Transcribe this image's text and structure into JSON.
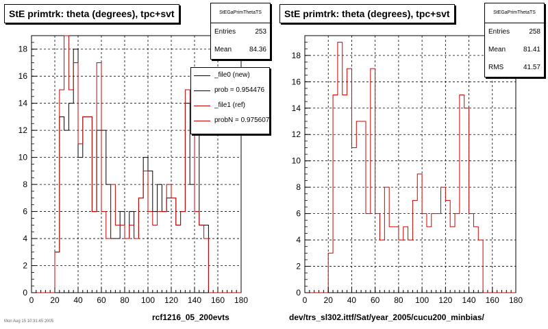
{
  "chart_data": [
    {
      "type": "histogram",
      "title": "StE primtrk: theta (degrees), tpc+svt",
      "xlabel": "rcf1216_05_200evts",
      "xlim": [
        0,
        180
      ],
      "ylim": [
        0,
        19
      ],
      "xticks": [
        0,
        20,
        40,
        60,
        80,
        100,
        120,
        140,
        160,
        180
      ],
      "yticks": [
        0,
        2,
        4,
        6,
        8,
        10,
        12,
        14,
        16,
        18
      ],
      "bin_width": 4,
      "grid": true,
      "stats": {
        "name": "StEGaPrimThetaTS",
        "entries_label": "Entries",
        "entries": "253",
        "mean_label": "Mean",
        "mean": "84.36"
      },
      "legend": {
        "placement": "top-right",
        "entries": [
          {
            "label": "_file0 (new)",
            "color": "#000000"
          },
          {
            "label": "prob = 0.954476",
            "color": "#000000"
          },
          {
            "label": "_file1 (ref)",
            "color": "#cc0000"
          },
          {
            "label": "probN = 0.975607",
            "color": "#cc0000"
          }
        ]
      },
      "series": [
        {
          "name": "_file0 (new)",
          "color": "#000000",
          "x": [
            20,
            24,
            28,
            32,
            36,
            40,
            44,
            48,
            52,
            56,
            60,
            64,
            68,
            72,
            76,
            80,
            84,
            88,
            92,
            96,
            100,
            104,
            108,
            112,
            116,
            120,
            124,
            128,
            132,
            136,
            140,
            144,
            148,
            152,
            156
          ],
          "values": [
            3,
            13,
            12,
            14,
            18,
            10,
            13,
            13,
            6,
            12,
            12,
            8,
            4,
            4,
            6,
            4,
            6,
            4,
            7,
            10,
            9,
            6,
            8,
            6,
            7,
            7,
            5,
            6,
            14,
            8,
            12,
            5,
            5,
            0,
            0
          ]
        },
        {
          "name": "_file1 (ref)",
          "color": "#cc0000",
          "x": [
            20,
            24,
            28,
            32,
            36,
            40,
            44,
            48,
            52,
            56,
            60,
            64,
            68,
            72,
            76,
            80,
            84,
            88,
            92,
            96,
            100,
            104,
            108,
            112,
            116,
            120,
            124,
            128,
            132,
            136,
            140,
            144,
            148,
            152,
            156
          ],
          "values": [
            3,
            15,
            19,
            15,
            17,
            11,
            13,
            13,
            6,
            17,
            6,
            4,
            8,
            5,
            5,
            4,
            5,
            4,
            7,
            9,
            6,
            5,
            6,
            6,
            8,
            7,
            5,
            6,
            15,
            14,
            6,
            5,
            4,
            0,
            0
          ]
        }
      ]
    },
    {
      "type": "histogram",
      "title": "StE primtrk: theta (degrees), tpc+svt",
      "xlabel": "dev/trs_sl302.ittf/Sat/year_2005/cucu200_minbias/",
      "xlim": [
        0,
        180
      ],
      "ylim": [
        0,
        19.5
      ],
      "xticks": [
        0,
        20,
        40,
        60,
        80,
        100,
        120,
        140,
        160,
        180
      ],
      "yticks": [
        0,
        2,
        4,
        6,
        8,
        10,
        12,
        14,
        16,
        18
      ],
      "bin_width": 4,
      "grid": true,
      "stats": {
        "name": "StEGaPrimThetaTS",
        "entries_label": "Entries",
        "entries": "258",
        "mean_label": "Mean",
        "mean": "81.41",
        "rms_label": "RMS",
        "rms": "41.57"
      },
      "series": [
        {
          "name": "",
          "color": "#cc0000",
          "x": [
            20,
            24,
            28,
            32,
            36,
            40,
            44,
            48,
            52,
            56,
            60,
            64,
            68,
            72,
            76,
            80,
            84,
            88,
            92,
            96,
            100,
            104,
            108,
            112,
            116,
            120,
            124,
            128,
            132,
            136,
            140,
            144,
            148,
            152,
            156
          ],
          "values": [
            3,
            15,
            19,
            15,
            17,
            11,
            13,
            13,
            6,
            17,
            6,
            4,
            8,
            5,
            5,
            4,
            5,
            4,
            7,
            9,
            6,
            5,
            6,
            6,
            8,
            7,
            5,
            6,
            15,
            14,
            6,
            5,
            4,
            0,
            0
          ]
        }
      ]
    }
  ],
  "footer": {
    "stamp": "Mon Aug 15 10:31:45 2005"
  }
}
